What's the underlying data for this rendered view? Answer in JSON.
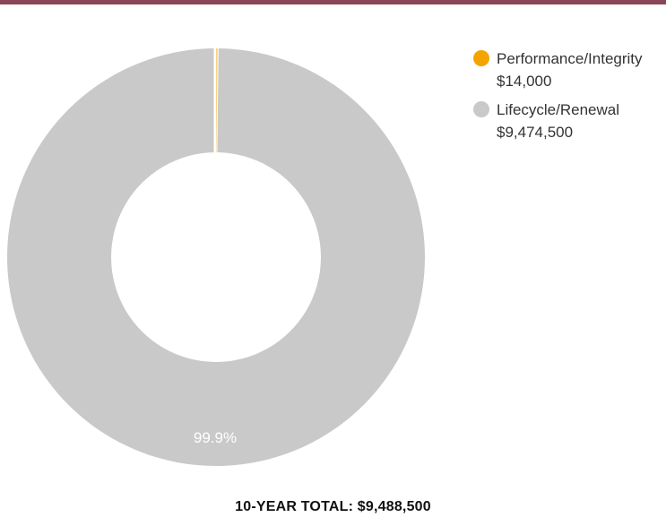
{
  "colors": {
    "top_rule": "#8a4656",
    "performance": "#f4a300",
    "lifecycle": "#c9c9c9",
    "separator": "#ffffff",
    "label_text": "#ffffff",
    "total_text": "#111111"
  },
  "chart_data": {
    "type": "pie",
    "title": "",
    "subtitle": "",
    "legend_position": "top-right",
    "series": [
      {
        "name": "Performance/Integrity",
        "value": 14000,
        "value_label": "$14,000",
        "color": "#f4a300"
      },
      {
        "name": "Lifecycle/Renewal",
        "value": 9474500,
        "value_label": "$9,474,500",
        "color": "#c9c9c9"
      }
    ],
    "data_labels": [
      {
        "series": "Lifecycle/Renewal",
        "text": "99.9%"
      }
    ],
    "total": {
      "label": "10-YEAR TOTAL:",
      "value": "$9,488,500"
    }
  }
}
